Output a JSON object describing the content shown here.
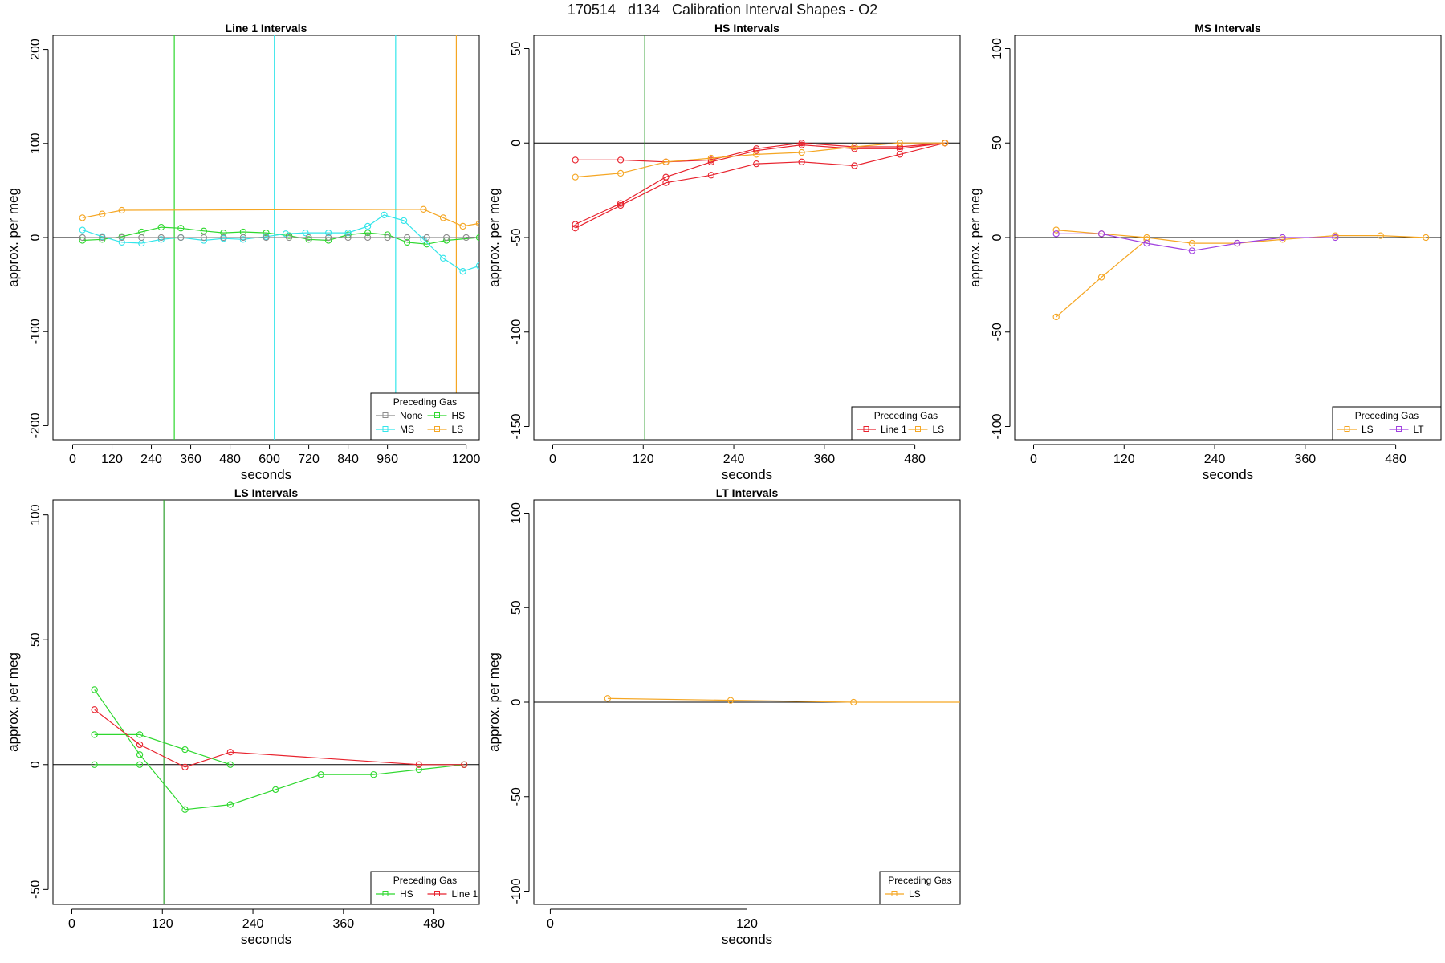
{
  "figure": {
    "title": "170514   d134   Calibration Interval Shapes - O2"
  },
  "colors": {
    "None": "#8c8c8c",
    "MS": "#33e5ea",
    "HS": "#2ed82e",
    "LS": "#f5a623",
    "Line 1": "#e8222d",
    "LT": "#a040e0",
    "hs_cross": "#2ea02e",
    "axis": "#000000"
  },
  "chart_data": [
    {
      "type": "line",
      "title": "Line 1 Intervals",
      "xlabel": "seconds",
      "ylabel": "approx. per meg",
      "xlim": [
        -60,
        1240
      ],
      "ylim": [
        -215,
        215
      ],
      "xticks": [
        0,
        120,
        240,
        360,
        480,
        600,
        720,
        840,
        960,
        1200
      ],
      "yticks": [
        -200,
        -100,
        0,
        100,
        200
      ],
      "hline": 0,
      "vlines": [
        {
          "x": 310,
          "color_key": "HS"
        },
        {
          "x": 615,
          "color_key": "MS"
        },
        {
          "x": 985,
          "color_key": "MS"
        },
        {
          "x": 1170,
          "color_key": "LS"
        }
      ],
      "legend": {
        "title": "Preceding Gas",
        "position": "bottom-right",
        "columns": 2,
        "entries": [
          "None",
          "HS",
          "MS",
          "LS"
        ]
      },
      "series": [
        {
          "color_key": "LS",
          "x": [
            30,
            90,
            150,
            1070,
            1130,
            1190,
            1240
          ],
          "y": [
            21,
            25,
            29,
            30,
            21,
            12,
            15
          ]
        },
        {
          "color_key": "HS",
          "x": [
            30,
            90,
            150,
            210,
            270,
            330,
            400,
            460,
            520,
            590,
            660,
            720,
            780,
            840,
            900,
            960,
            1020,
            1080,
            1140,
            1240
          ],
          "y": [
            -3,
            -2,
            1,
            6,
            11,
            10,
            7,
            5,
            6,
            5,
            2,
            -2,
            -3,
            3,
            5,
            3,
            -5,
            -7,
            -3,
            0
          ]
        },
        {
          "color_key": "MS",
          "x": [
            30,
            90,
            150,
            210,
            270,
            330,
            400,
            460,
            520,
            590,
            650,
            710,
            780,
            840,
            900,
            950,
            1010,
            1070,
            1130,
            1190,
            1240
          ],
          "y": [
            8,
            1,
            -5,
            -6,
            -2,
            0,
            -3,
            -1,
            -2,
            1,
            4,
            5,
            5,
            5,
            12,
            24,
            18,
            -2,
            -22,
            -36,
            -30
          ]
        },
        {
          "color_key": "None",
          "x": [
            30,
            90,
            150,
            210,
            270,
            330,
            400,
            460,
            520,
            590,
            660,
            720,
            780,
            840,
            900,
            960,
            1020,
            1080,
            1140,
            1200
          ],
          "y": [
            0,
            0,
            0,
            0,
            0,
            0,
            0,
            0,
            0,
            0,
            0,
            0,
            0,
            0,
            0,
            0,
            0,
            0,
            0,
            0
          ]
        }
      ]
    },
    {
      "type": "line",
      "title": "HS Intervals",
      "xlabel": "seconds",
      "ylabel": "approx. per meg",
      "xlim": [
        -25,
        540
      ],
      "ylim": [
        -157,
        57
      ],
      "xticks": [
        0,
        120,
        240,
        360,
        480
      ],
      "yticks": [
        -150,
        -100,
        -50,
        0,
        50
      ],
      "hline": 0,
      "vlines": [
        {
          "x": 122,
          "color_key": "hs_cross"
        }
      ],
      "legend": {
        "title": "Preceding Gas",
        "position": "bottom-right",
        "columns": 2,
        "entries": [
          "Line 1",
          "LS"
        ]
      },
      "series": [
        {
          "color_key": "Line 1",
          "x": [
            30,
            90,
            150,
            210,
            270,
            330,
            400,
            460,
            520
          ],
          "y": [
            -9,
            -9,
            -10,
            -9,
            -3,
            0,
            -2,
            -2,
            0
          ]
        },
        {
          "color_key": "Line 1",
          "x": [
            30,
            90,
            150,
            210,
            270,
            330,
            400,
            460,
            520
          ],
          "y": [
            -43,
            -32,
            -18,
            -10,
            -4,
            -1,
            -3,
            -3,
            0
          ]
        },
        {
          "color_key": "Line 1",
          "x": [
            30,
            90,
            150,
            210,
            270,
            330,
            400,
            460,
            520
          ],
          "y": [
            -45,
            -33,
            -21,
            -17,
            -11,
            -10,
            -12,
            -6,
            0
          ]
        },
        {
          "color_key": "LS",
          "x": [
            30,
            90,
            150,
            210,
            270,
            330,
            400,
            460,
            520
          ],
          "y": [
            -18,
            -16,
            -10,
            -8,
            -6,
            -5,
            -2,
            0,
            0
          ]
        }
      ]
    },
    {
      "type": "line",
      "title": "MS Intervals",
      "xlabel": "seconds",
      "ylabel": "approx. per meg",
      "xlim": [
        -25,
        540
      ],
      "ylim": [
        -107,
        107
      ],
      "xticks": [
        0,
        120,
        240,
        360,
        480
      ],
      "yticks": [
        -100,
        -50,
        0,
        50,
        100
      ],
      "hline": 0,
      "vlines": [],
      "legend": {
        "title": "Preceding Gas",
        "position": "bottom-right",
        "columns": 2,
        "entries": [
          "LS",
          "LT"
        ]
      },
      "series": [
        {
          "color_key": "LS",
          "x": [
            30,
            90,
            150,
            210,
            270,
            330,
            400,
            460,
            520
          ],
          "y": [
            4,
            2,
            0,
            -3,
            -3,
            -1,
            1,
            1,
            0
          ]
        },
        {
          "color_key": "LS",
          "x": [
            30,
            90,
            150
          ],
          "y": [
            -42,
            -21,
            -1
          ]
        },
        {
          "color_key": "LT",
          "x": [
            30,
            90,
            150,
            210,
            270,
            330,
            400
          ],
          "y": [
            2,
            2,
            -3,
            -7,
            -3,
            0,
            0
          ]
        }
      ]
    },
    {
      "type": "line",
      "title": "LS Intervals",
      "xlabel": "seconds",
      "ylabel": "approx. per meg",
      "xlim": [
        -25,
        540
      ],
      "ylim": [
        -56,
        106
      ],
      "xticks": [
        0,
        120,
        240,
        360,
        480
      ],
      "yticks": [
        -50,
        0,
        50,
        100
      ],
      "hline": 0,
      "vlines": [
        {
          "x": 122,
          "color_key": "hs_cross"
        }
      ],
      "legend": {
        "title": "Preceding Gas",
        "position": "bottom-right",
        "columns": 2,
        "entries": [
          "HS",
          "Line 1"
        ]
      },
      "series": [
        {
          "color_key": "HS",
          "x": [
            30,
            90,
            150,
            210,
            270,
            330,
            400,
            460,
            520
          ],
          "y": [
            30,
            4,
            -18,
            -16,
            -10,
            -4,
            -4,
            -2,
            0
          ]
        },
        {
          "color_key": "HS",
          "x": [
            30,
            90,
            150,
            210
          ],
          "y": [
            12,
            12,
            6,
            0
          ]
        },
        {
          "color_key": "HS",
          "x": [
            30,
            90
          ],
          "y": [
            0,
            0
          ]
        },
        {
          "color_key": "Line 1",
          "x": [
            30,
            90,
            150,
            210,
            460,
            520
          ],
          "y": [
            22,
            8,
            -1,
            5,
            0,
            0
          ]
        }
      ]
    },
    {
      "type": "line",
      "title": "LT Intervals",
      "xlabel": "seconds",
      "ylabel": "approx. per meg",
      "xlim": [
        -10,
        250
      ],
      "ylim": [
        -107,
        107
      ],
      "xticks": [
        0,
        120
      ],
      "yticks": [
        -100,
        -50,
        0,
        50,
        100
      ],
      "hline": 0,
      "vlines": [],
      "legend": {
        "title": "Preceding Gas",
        "position": "bottom-right",
        "columns": 1,
        "entries": [
          "LS"
        ]
      },
      "series": [
        {
          "color_key": "LS",
          "x": [
            35,
            110,
            185,
            258
          ],
          "y": [
            2,
            1,
            0,
            0
          ]
        }
      ]
    }
  ]
}
